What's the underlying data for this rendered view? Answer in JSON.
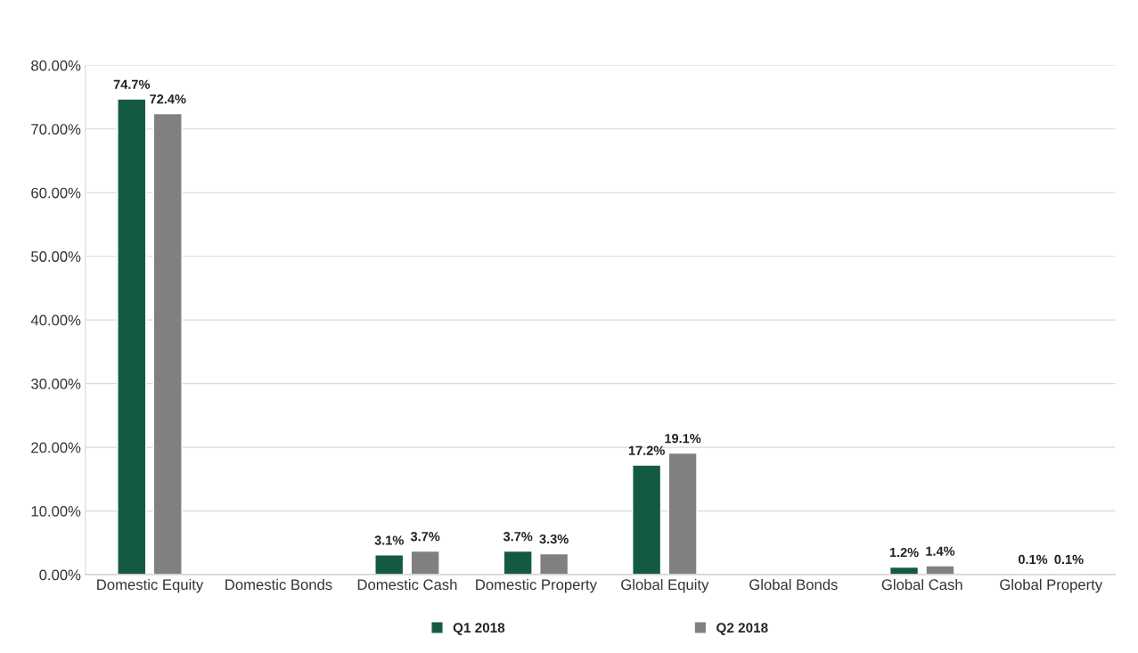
{
  "chart_data": {
    "type": "bar",
    "categories": [
      "Domestic Equity",
      "Domestic Bonds",
      "Domestic Cash",
      "Domestic Property",
      "Global Equity",
      "Global Bonds",
      "Global Cash",
      "Global Property"
    ],
    "series": [
      {
        "name": "Q1 2018",
        "color": "#145a41",
        "values": [
          74.7,
          null,
          3.1,
          3.7,
          17.2,
          null,
          1.2,
          0.1
        ],
        "value_labels": [
          "74.7%",
          null,
          "3.1%",
          "3.7%",
          "17.2%",
          null,
          "1.2%",
          "0.1%"
        ]
      },
      {
        "name": "Q2 2018",
        "color": "#808080",
        "values": [
          72.4,
          null,
          3.7,
          3.3,
          19.1,
          null,
          1.4,
          0.1
        ],
        "value_labels": [
          "72.4%",
          null,
          "3.7%",
          "3.3%",
          "19.1%",
          null,
          "1.4%",
          "0.1%"
        ]
      }
    ],
    "ylim": [
      0,
      80
    ],
    "yticks": [
      {
        "value": 0,
        "label": "0.00%"
      },
      {
        "value": 10,
        "label": "10.00%"
      },
      {
        "value": 20,
        "label": "20.00%"
      },
      {
        "value": 30,
        "label": "30.00%"
      },
      {
        "value": 40,
        "label": "40.00%"
      },
      {
        "value": 50,
        "label": "50.00%"
      },
      {
        "value": 60,
        "label": "60.00%"
      },
      {
        "value": 70,
        "label": "70.00%"
      },
      {
        "value": 80,
        "label": "80.00%"
      }
    ],
    "grid": "y",
    "legend": "bottom"
  }
}
